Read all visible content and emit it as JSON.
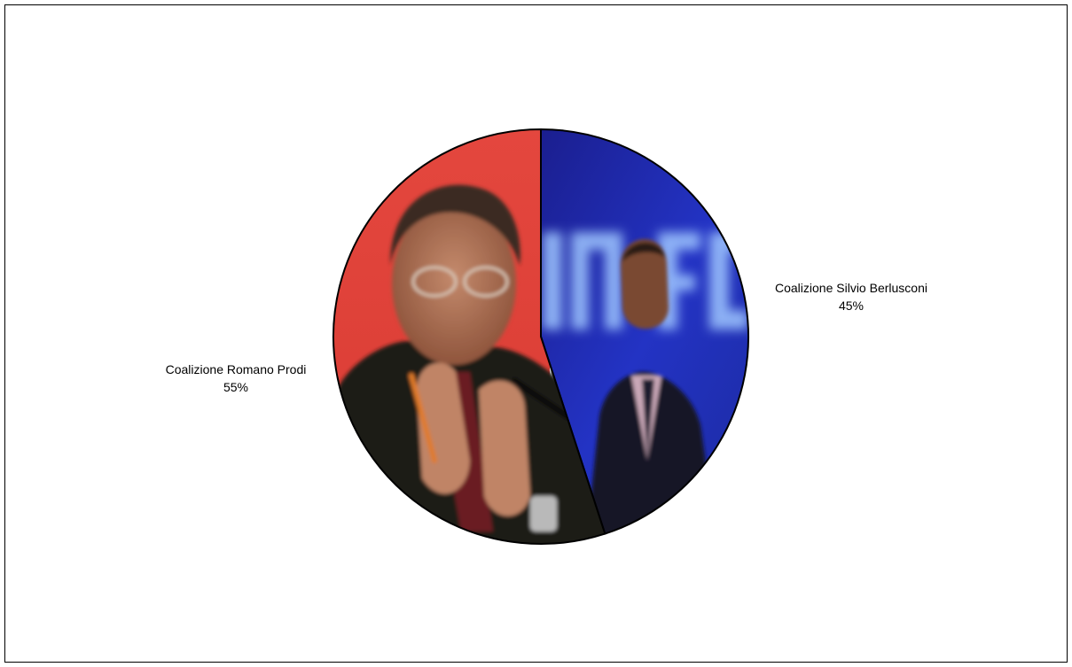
{
  "chart_data": {
    "type": "pie",
    "title": "",
    "start_angle_deg": 0,
    "direction": "clockwise",
    "slices": [
      {
        "name": "Coalizione Silvio Berlusconi",
        "value": 45,
        "value_label": "45%",
        "color": "#1e2aa8",
        "fill_image": "photo-silvio-berlusconi"
      },
      {
        "name": "Coalizione Romano Prodi",
        "value": 55,
        "value_label": "55%",
        "color": "#e8473f",
        "fill_image": "photo-romano-prodi"
      }
    ],
    "legend": "none",
    "outline_color": "#000000"
  }
}
